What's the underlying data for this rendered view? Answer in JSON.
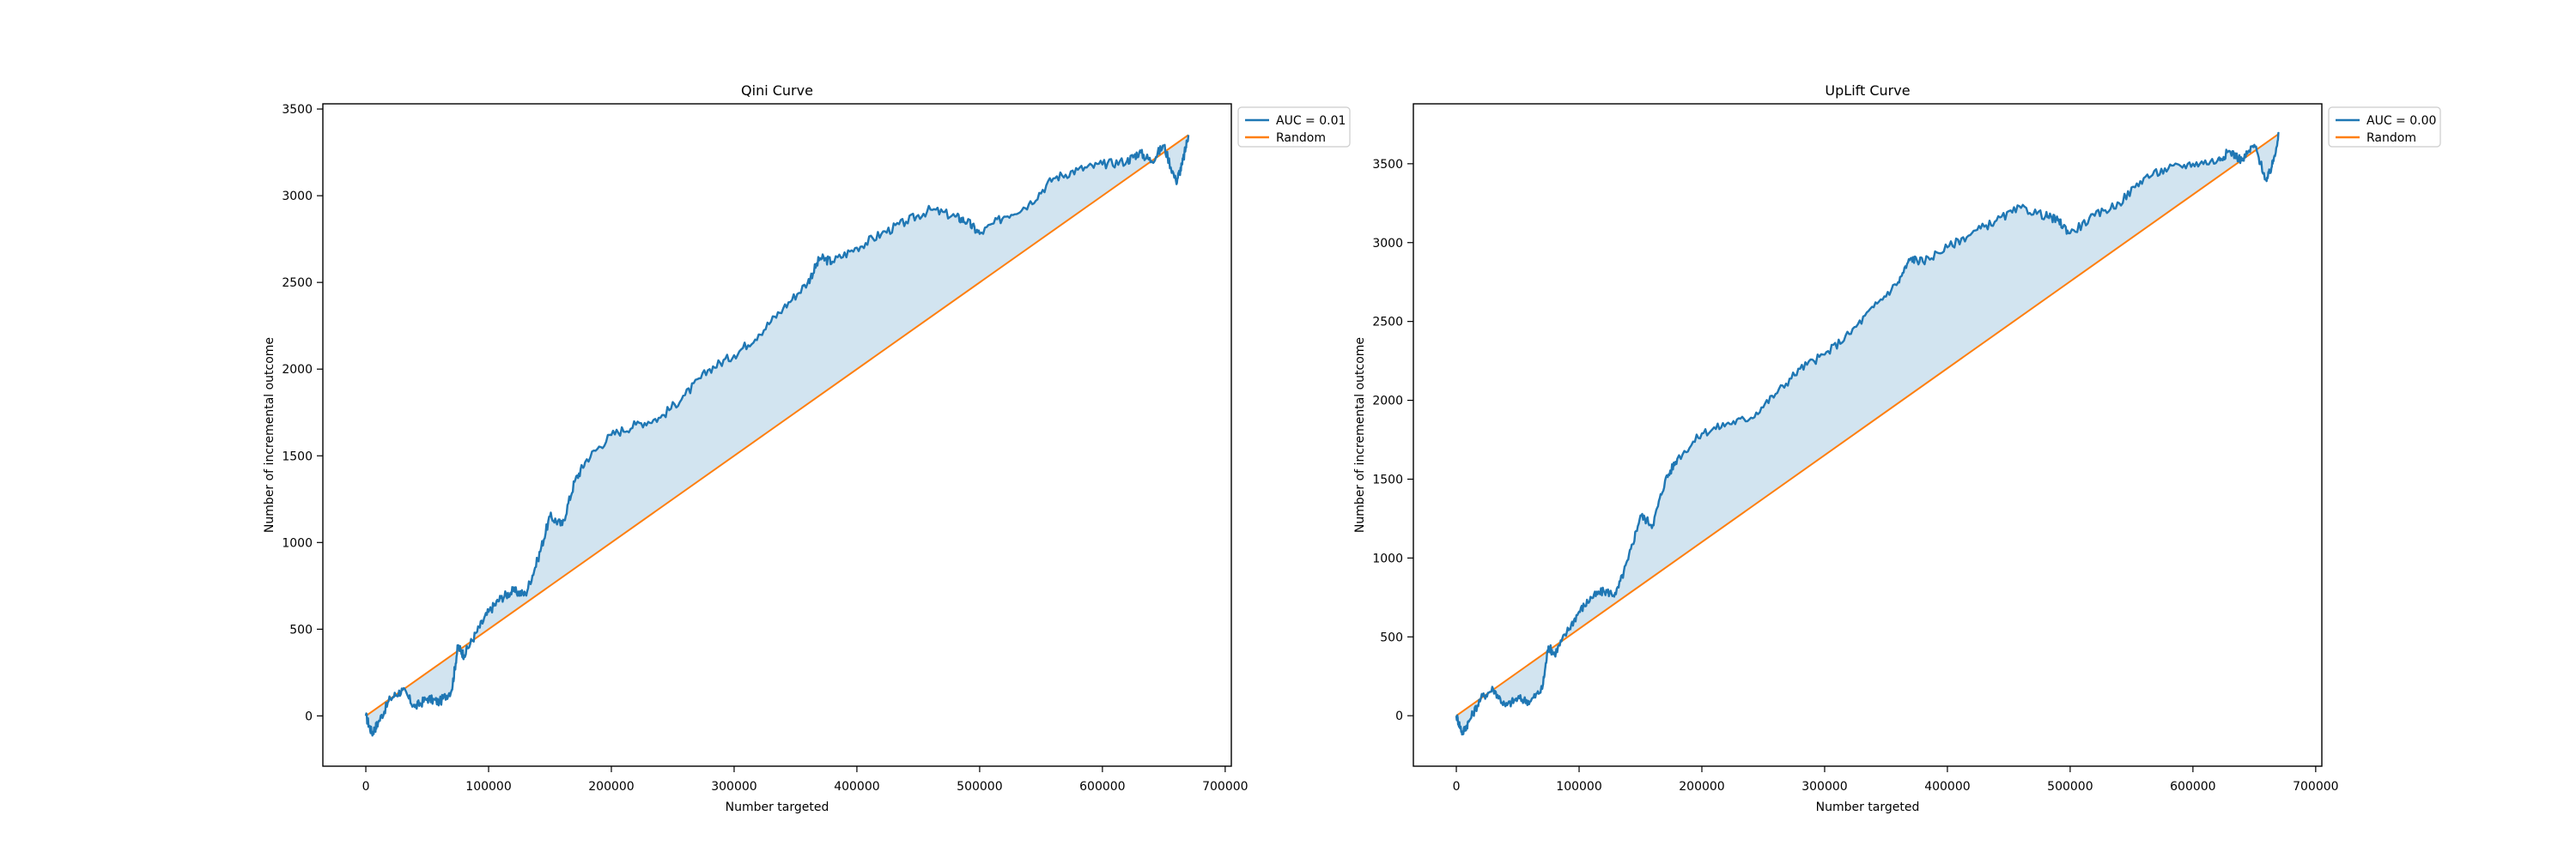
{
  "chart_data": [
    {
      "type": "line",
      "title": "Qini Curve",
      "xlabel": "Number targeted",
      "ylabel": "Number of incremental outcome",
      "xlim": [
        -35000,
        705000
      ],
      "ylim": [
        -290,
        3530
      ],
      "xticks": [
        0,
        100000,
        200000,
        300000,
        400000,
        500000,
        600000,
        700000
      ],
      "xtick_labels": [
        "0",
        "100000",
        "200000",
        "300000",
        "400000",
        "500000",
        "600000",
        "700000"
      ],
      "yticks": [
        0,
        500,
        1000,
        1500,
        2000,
        2500,
        3000,
        3500
      ],
      "ytick_labels": [
        "0",
        "500",
        "1000",
        "1500",
        "2000",
        "2500",
        "3000",
        "3500"
      ],
      "grid": false,
      "legend_position": "outside top-right",
      "fill_between_series": true,
      "series": [
        {
          "name": "AUC = 0.01",
          "color": "#1f77b4",
          "x": [
            0,
            5000,
            10000,
            20000,
            30000,
            40000,
            50000,
            60000,
            70000,
            75000,
            80000,
            90000,
            100000,
            110000,
            120000,
            130000,
            140000,
            150000,
            160000,
            170000,
            180000,
            200000,
            220000,
            240000,
            260000,
            280000,
            300000,
            320000,
            340000,
            360000,
            370000,
            380000,
            400000,
            420000,
            440000,
            460000,
            480000,
            490000,
            500000,
            520000,
            540000,
            560000,
            580000,
            600000,
            620000,
            630000,
            640000,
            650000,
            660000,
            665000,
            670000
          ],
          "y": [
            0,
            -100,
            -40,
            100,
            150,
            50,
            100,
            80,
            150,
            400,
            350,
            480,
            600,
            680,
            720,
            700,
            900,
            1150,
            1100,
            1350,
            1480,
            1620,
            1680,
            1720,
            1850,
            2000,
            2080,
            2200,
            2350,
            2500,
            2640,
            2620,
            2700,
            2780,
            2850,
            2920,
            2880,
            2850,
            2780,
            2880,
            2950,
            3100,
            3150,
            3180,
            3200,
            3250,
            3200,
            3290,
            3080,
            3180,
            3350
          ]
        },
        {
          "name": "Random",
          "color": "#ff7f0e",
          "x": [
            0,
            670000
          ],
          "y": [
            0,
            3350
          ]
        }
      ]
    },
    {
      "type": "line",
      "title": "UpLift Curve",
      "xlabel": "Number targeted",
      "ylabel": "Number of incremental outcome",
      "xlim": [
        -35000,
        705000
      ],
      "ylim": [
        -320,
        3880
      ],
      "xticks": [
        0,
        100000,
        200000,
        300000,
        400000,
        500000,
        600000,
        700000
      ],
      "xtick_labels": [
        "0",
        "100000",
        "200000",
        "300000",
        "400000",
        "500000",
        "600000",
        "700000"
      ],
      "yticks": [
        0,
        500,
        1000,
        1500,
        2000,
        2500,
        3000,
        3500
      ],
      "ytick_labels": [
        "0",
        "500",
        "1000",
        "1500",
        "2000",
        "2500",
        "3000",
        "3500"
      ],
      "grid": false,
      "legend_position": "outside top-right",
      "fill_between_series": true,
      "series": [
        {
          "name": "AUC = 0.00",
          "color": "#1f77b4",
          "x": [
            0,
            5000,
            10000,
            20000,
            30000,
            40000,
            50000,
            60000,
            70000,
            75000,
            80000,
            90000,
            100000,
            110000,
            120000,
            130000,
            140000,
            150000,
            160000,
            170000,
            180000,
            200000,
            220000,
            240000,
            260000,
            280000,
            300000,
            320000,
            340000,
            360000,
            370000,
            380000,
            400000,
            420000,
            440000,
            460000,
            480000,
            490000,
            500000,
            520000,
            540000,
            560000,
            580000,
            600000,
            620000,
            630000,
            640000,
            650000,
            660000,
            665000,
            670000
          ],
          "y": [
            0,
            -110,
            -40,
            110,
            170,
            60,
            110,
            90,
            170,
            440,
            390,
            530,
            660,
            750,
            790,
            770,
            990,
            1270,
            1210,
            1490,
            1630,
            1790,
            1850,
            1890,
            2040,
            2200,
            2290,
            2420,
            2590,
            2750,
            2900,
            2880,
            2970,
            3060,
            3140,
            3220,
            3170,
            3140,
            3060,
            3170,
            3250,
            3410,
            3470,
            3500,
            3520,
            3580,
            3520,
            3620,
            3390,
            3500,
            3690
          ]
        },
        {
          "name": "Random",
          "color": "#ff7f0e",
          "x": [
            0,
            670000
          ],
          "y": [
            0,
            3690
          ]
        }
      ]
    }
  ]
}
